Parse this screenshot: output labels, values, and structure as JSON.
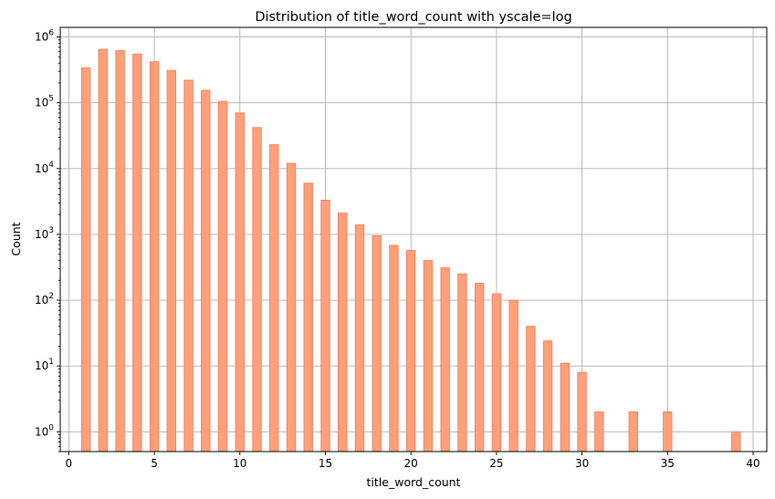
{
  "chart_data": {
    "type": "bar",
    "title": "Distribution of title_word_count with yscale=log",
    "xlabel": "title_word_count",
    "ylabel": "Count",
    "yscale": "log",
    "xlim": [
      -0.5,
      40.8
    ],
    "ylim": [
      0.5,
      1400000
    ],
    "grid": true,
    "bar_color": "#ffa07a",
    "bar_edge_color": "#f4845f",
    "x_ticks": [
      0,
      5,
      10,
      15,
      20,
      25,
      30,
      35,
      40
    ],
    "x_tick_labels": [
      "0",
      "5",
      "10",
      "15",
      "20",
      "25",
      "30",
      "35",
      "40"
    ],
    "y_ticks": [
      1,
      10,
      100,
      1000,
      10000,
      100000,
      1000000
    ],
    "y_tick_labels": [
      {
        "base": "10",
        "exp": "0"
      },
      {
        "base": "10",
        "exp": "1"
      },
      {
        "base": "10",
        "exp": "2"
      },
      {
        "base": "10",
        "exp": "3"
      },
      {
        "base": "10",
        "exp": "4"
      },
      {
        "base": "10",
        "exp": "5"
      },
      {
        "base": "10",
        "exp": "6"
      }
    ],
    "bars": [
      {
        "x": 1,
        "count": 340000
      },
      {
        "x": 2,
        "count": 650000
      },
      {
        "x": 3,
        "count": 620000
      },
      {
        "x": 4,
        "count": 550000
      },
      {
        "x": 5,
        "count": 420000
      },
      {
        "x": 6,
        "count": 310000
      },
      {
        "x": 7,
        "count": 220000
      },
      {
        "x": 8,
        "count": 155000
      },
      {
        "x": 9,
        "count": 105000
      },
      {
        "x": 10,
        "count": 70000
      },
      {
        "x": 11,
        "count": 42000
      },
      {
        "x": 12,
        "count": 23000
      },
      {
        "x": 13,
        "count": 12000
      },
      {
        "x": 14,
        "count": 6000
      },
      {
        "x": 15,
        "count": 3300
      },
      {
        "x": 16,
        "count": 2100
      },
      {
        "x": 17,
        "count": 1400
      },
      {
        "x": 18,
        "count": 950
      },
      {
        "x": 19,
        "count": 680
      },
      {
        "x": 20,
        "count": 570
      },
      {
        "x": 21,
        "count": 400
      },
      {
        "x": 22,
        "count": 310
      },
      {
        "x": 23,
        "count": 250
      },
      {
        "x": 24,
        "count": 180
      },
      {
        "x": 25,
        "count": 125
      },
      {
        "x": 26,
        "count": 100
      },
      {
        "x": 27,
        "count": 40
      },
      {
        "x": 28,
        "count": 24
      },
      {
        "x": 29,
        "count": 11
      },
      {
        "x": 30,
        "count": 8
      },
      {
        "x": 31,
        "count": 2
      },
      {
        "x": 33,
        "count": 2
      },
      {
        "x": 35,
        "count": 2
      },
      {
        "x": 39,
        "count": 1
      }
    ]
  }
}
